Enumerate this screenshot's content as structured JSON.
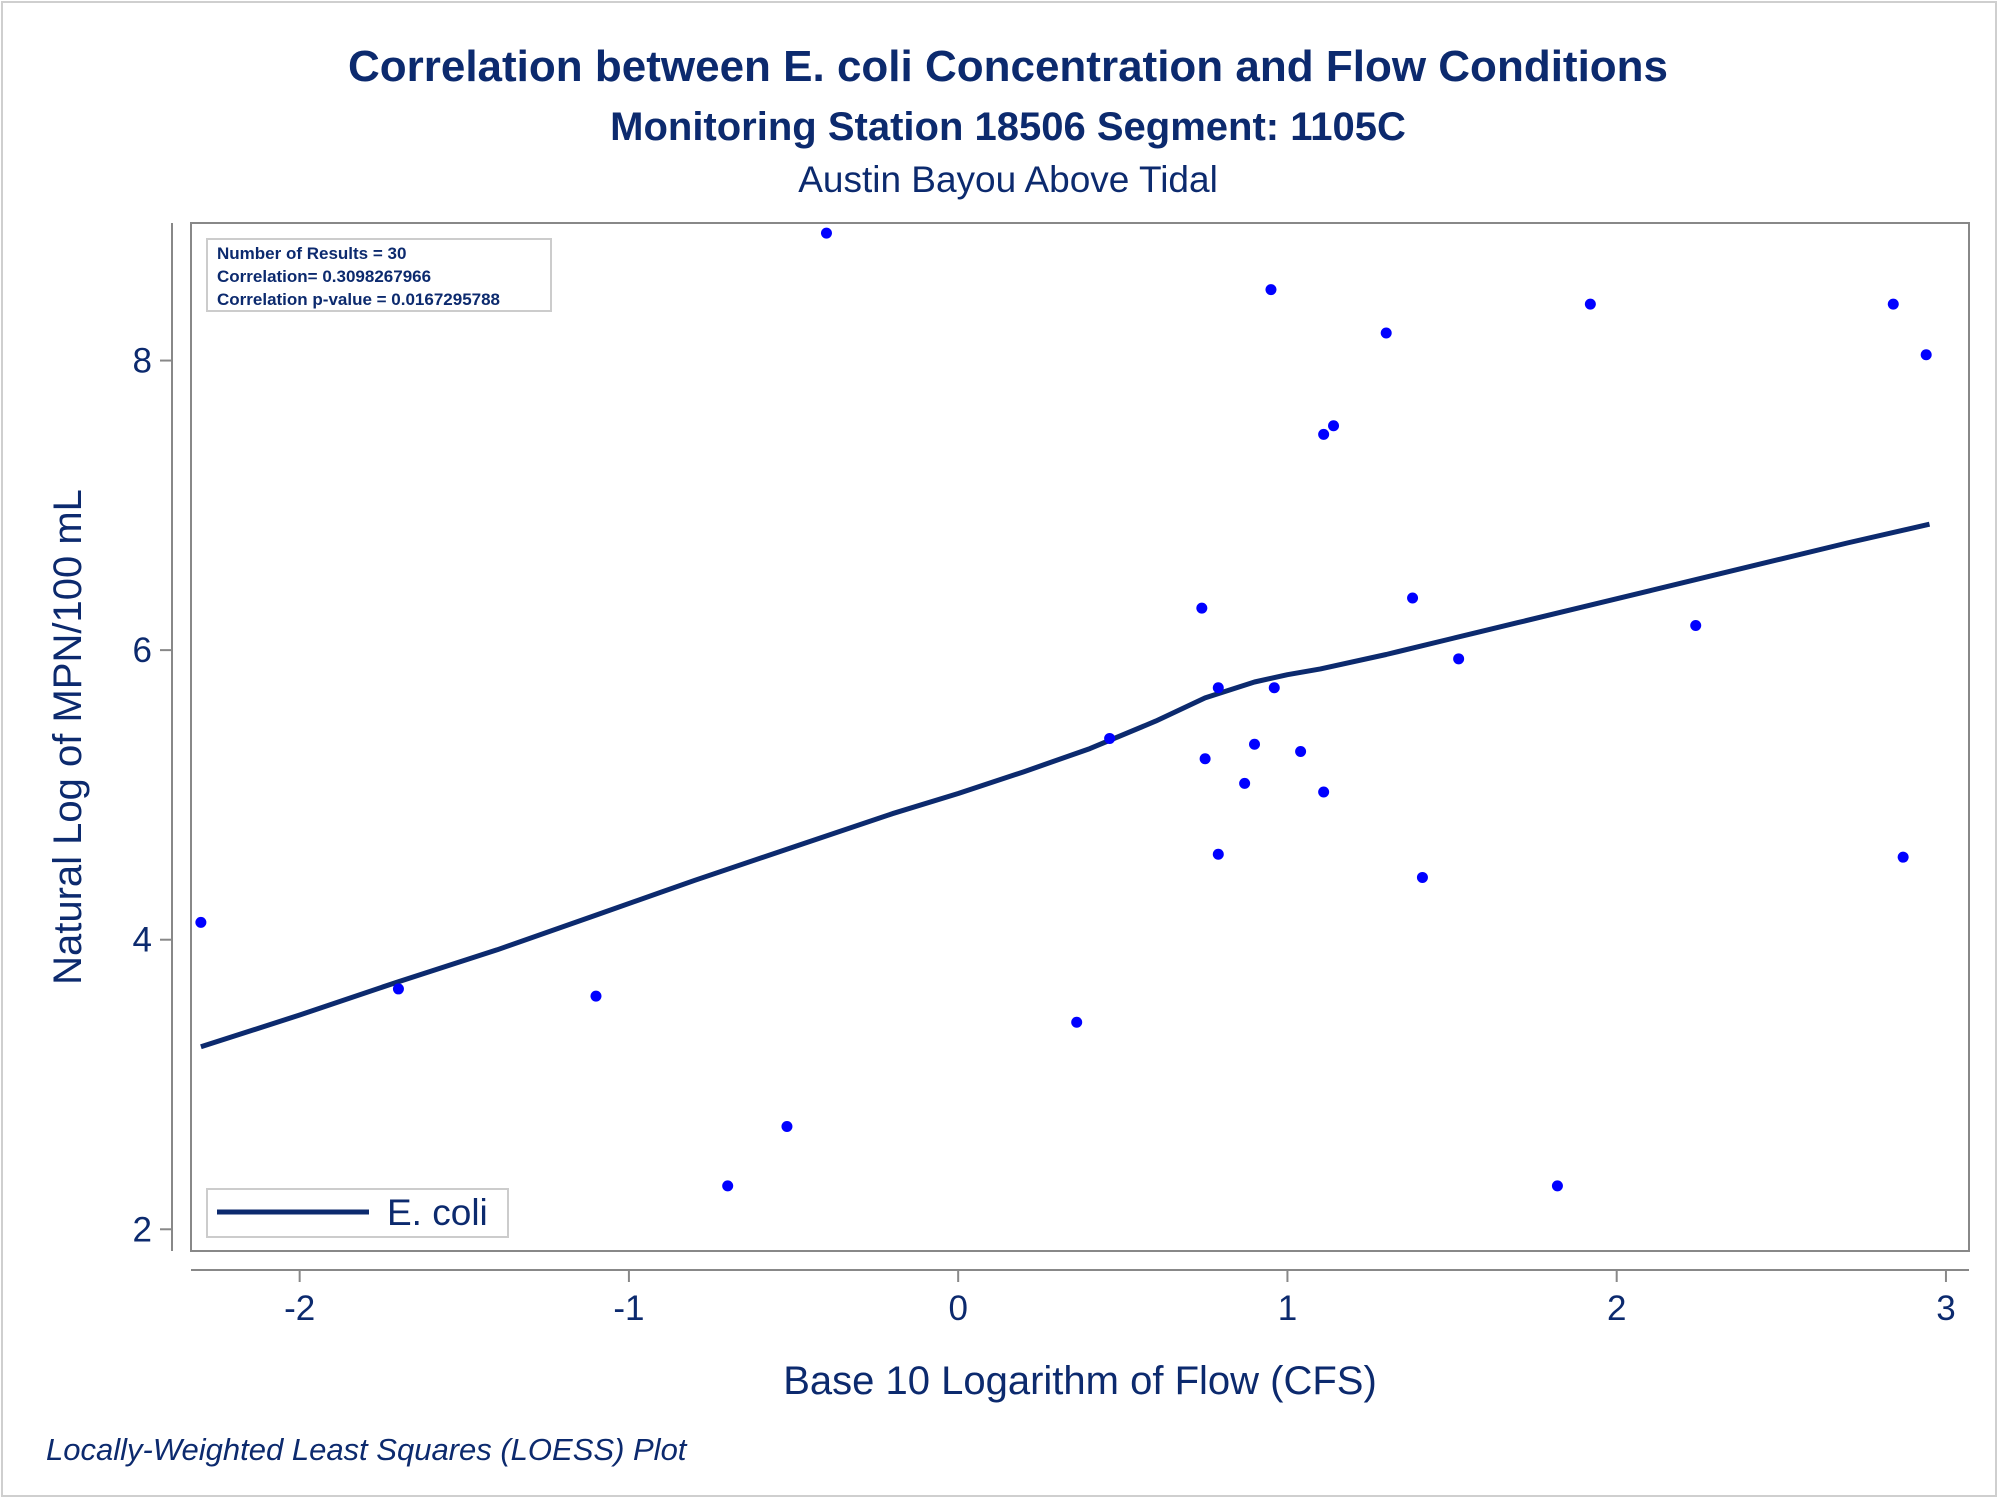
{
  "chart_data": {
    "type": "scatter",
    "title": "Correlation between E. coli Concentration and Flow Conditions",
    "subtitle": "Monitoring Station 18506 Segment: 1105C",
    "subtitle2": "Austin Bayou Above Tidal",
    "xlabel": "Base 10 Logarithm of Flow (CFS)",
    "ylabel": "Natural Log of MPN/100 mL",
    "xlim": [
      -2.33,
      3.07
    ],
    "ylim": [
      1.85,
      8.95
    ],
    "xticks": [
      -2,
      -1,
      0,
      1,
      2,
      3
    ],
    "yticks": [
      2,
      4,
      6,
      8
    ],
    "xtick_labels": [
      "-2",
      "-1",
      "0",
      "1",
      "2",
      "3"
    ],
    "ytick_labels": [
      "2",
      "4",
      "6",
      "8"
    ],
    "stats": {
      "n_results": "Number of Results = 30",
      "correlation": "Correlation= 0.3098267966",
      "p_value": "Correlation p-value = 0.0167295788"
    },
    "legend": {
      "placement": "bottom-left",
      "entries": [
        "E. coli"
      ]
    },
    "footnote": "Locally-Weighted Least Squares (LOESS) Plot",
    "colors": {
      "points": "#0000ff",
      "line": "#0c2a6e",
      "text": "#0c2a6e",
      "frame": "#888888"
    },
    "points": [
      [
        -2.3,
        4.12
      ],
      [
        -1.7,
        3.66
      ],
      [
        -1.1,
        3.61
      ],
      [
        -0.7,
        2.3
      ],
      [
        -0.52,
        2.71
      ],
      [
        -0.4,
        8.88
      ],
      [
        0.36,
        3.43
      ],
      [
        0.46,
        5.39
      ],
      [
        0.74,
        6.29
      ],
      [
        0.75,
        5.25
      ],
      [
        0.79,
        5.74
      ],
      [
        0.79,
        4.59
      ],
      [
        0.87,
        5.08
      ],
      [
        0.9,
        5.35
      ],
      [
        0.95,
        8.49
      ],
      [
        0.96,
        5.74
      ],
      [
        1.04,
        5.3
      ],
      [
        1.11,
        5.02
      ],
      [
        1.11,
        7.49
      ],
      [
        1.14,
        7.55
      ],
      [
        1.3,
        8.19
      ],
      [
        1.38,
        6.36
      ],
      [
        1.41,
        4.43
      ],
      [
        1.52,
        5.94
      ],
      [
        1.82,
        2.3
      ],
      [
        1.92,
        8.39
      ],
      [
        2.24,
        6.17
      ],
      [
        2.84,
        8.39
      ],
      [
        2.87,
        4.57
      ],
      [
        2.94,
        8.04
      ]
    ],
    "series": [
      {
        "name": "E. coli",
        "x": [
          -2.3,
          -2.0,
          -1.7,
          -1.4,
          -1.1,
          -0.8,
          -0.5,
          -0.2,
          0.0,
          0.2,
          0.4,
          0.6,
          0.75,
          0.9,
          1.0,
          1.1,
          1.3,
          1.5,
          1.7,
          1.9,
          2.1,
          2.3,
          2.5,
          2.7,
          2.95
        ],
        "y": [
          3.26,
          3.48,
          3.71,
          3.93,
          4.17,
          4.41,
          4.64,
          4.87,
          5.01,
          5.16,
          5.32,
          5.51,
          5.67,
          5.78,
          5.83,
          5.87,
          5.97,
          6.08,
          6.19,
          6.3,
          6.41,
          6.52,
          6.63,
          6.74,
          6.87
        ]
      }
    ]
  }
}
